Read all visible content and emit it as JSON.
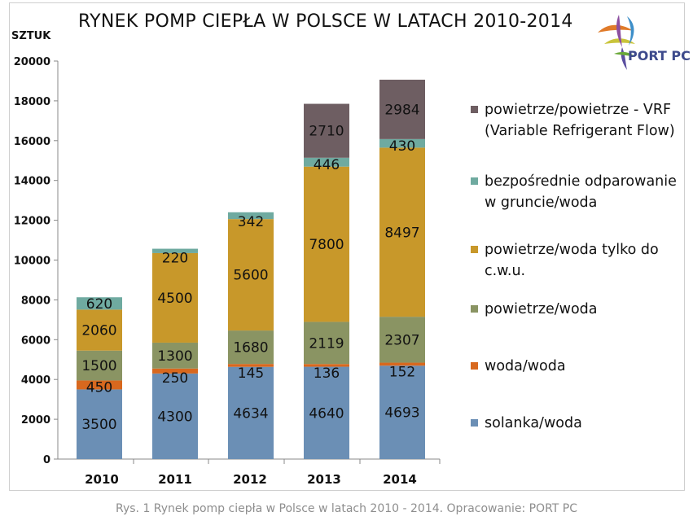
{
  "title": "RYNEK POMP CIEPŁA W POLSCE W LATACH 2010-2014",
  "y_unit": "SZTUK",
  "logo_text": "PORT PC",
  "caption": "Rys. 1 Rynek pomp ciepła w Polsce w latach 2010 - 2014. Opracowanie: PORT PC",
  "colors": {
    "solanka": "#6b8fb5",
    "woda": "#d8681e",
    "powietrze_woda": "#8a9463",
    "cwu": "#c8982a",
    "gruncie": "#6faaa0",
    "vrf": "#6e5e62"
  },
  "chart_data": {
    "type": "bar",
    "stacked": true,
    "title": "RYNEK POMP CIEPŁA W POLSCE W LATACH 2010-2014",
    "ylabel": "SZTUK",
    "xlabel": "",
    "categories": [
      "2010",
      "2011",
      "2012",
      "2013",
      "2014"
    ],
    "ylim": [
      0,
      20000
    ],
    "yticks": [
      0,
      2000,
      4000,
      6000,
      8000,
      10000,
      12000,
      14000,
      16000,
      18000,
      20000
    ],
    "legend_position": "right",
    "series": [
      {
        "name": "solanka/woda",
        "color": "#6b8fb5",
        "values": [
          3500,
          4300,
          4634,
          4640,
          4693
        ]
      },
      {
        "name": "woda/woda",
        "color": "#d8681e",
        "values": [
          450,
          250,
          145,
          136,
          152
        ]
      },
      {
        "name": "powietrze/woda",
        "color": "#8a9463",
        "values": [
          1500,
          1300,
          1680,
          2119,
          2307
        ]
      },
      {
        "name": "powietrze/woda tylko do c.w.u.",
        "color": "#c8982a",
        "values": [
          2060,
          4500,
          5600,
          7800,
          8497
        ]
      },
      {
        "name": "bezpośrednie odparowanie w gruncie/woda",
        "color": "#6faaa0",
        "values": [
          620,
          220,
          342,
          446,
          430
        ]
      },
      {
        "name": "powietrze/powietrze - VRF (Variable Refrigerant Flow)",
        "color": "#6e5e62",
        "values": [
          0,
          0,
          0,
          2710,
          2984
        ]
      }
    ],
    "legend": [
      {
        "name": "powietrze/powietrze - VRF (Variable Refrigerant Flow)",
        "color": "#6e5e62"
      },
      {
        "name": "bezpośrednie odparowanie w gruncie/woda",
        "color": "#6faaa0"
      },
      {
        "name": "powietrze/woda tylko do c.w.u.",
        "color": "#c8982a"
      },
      {
        "name": "powietrze/woda",
        "color": "#8a9463"
      },
      {
        "name": "woda/woda",
        "color": "#d8681e"
      },
      {
        "name": "solanka/woda",
        "color": "#6b8fb5"
      }
    ]
  }
}
